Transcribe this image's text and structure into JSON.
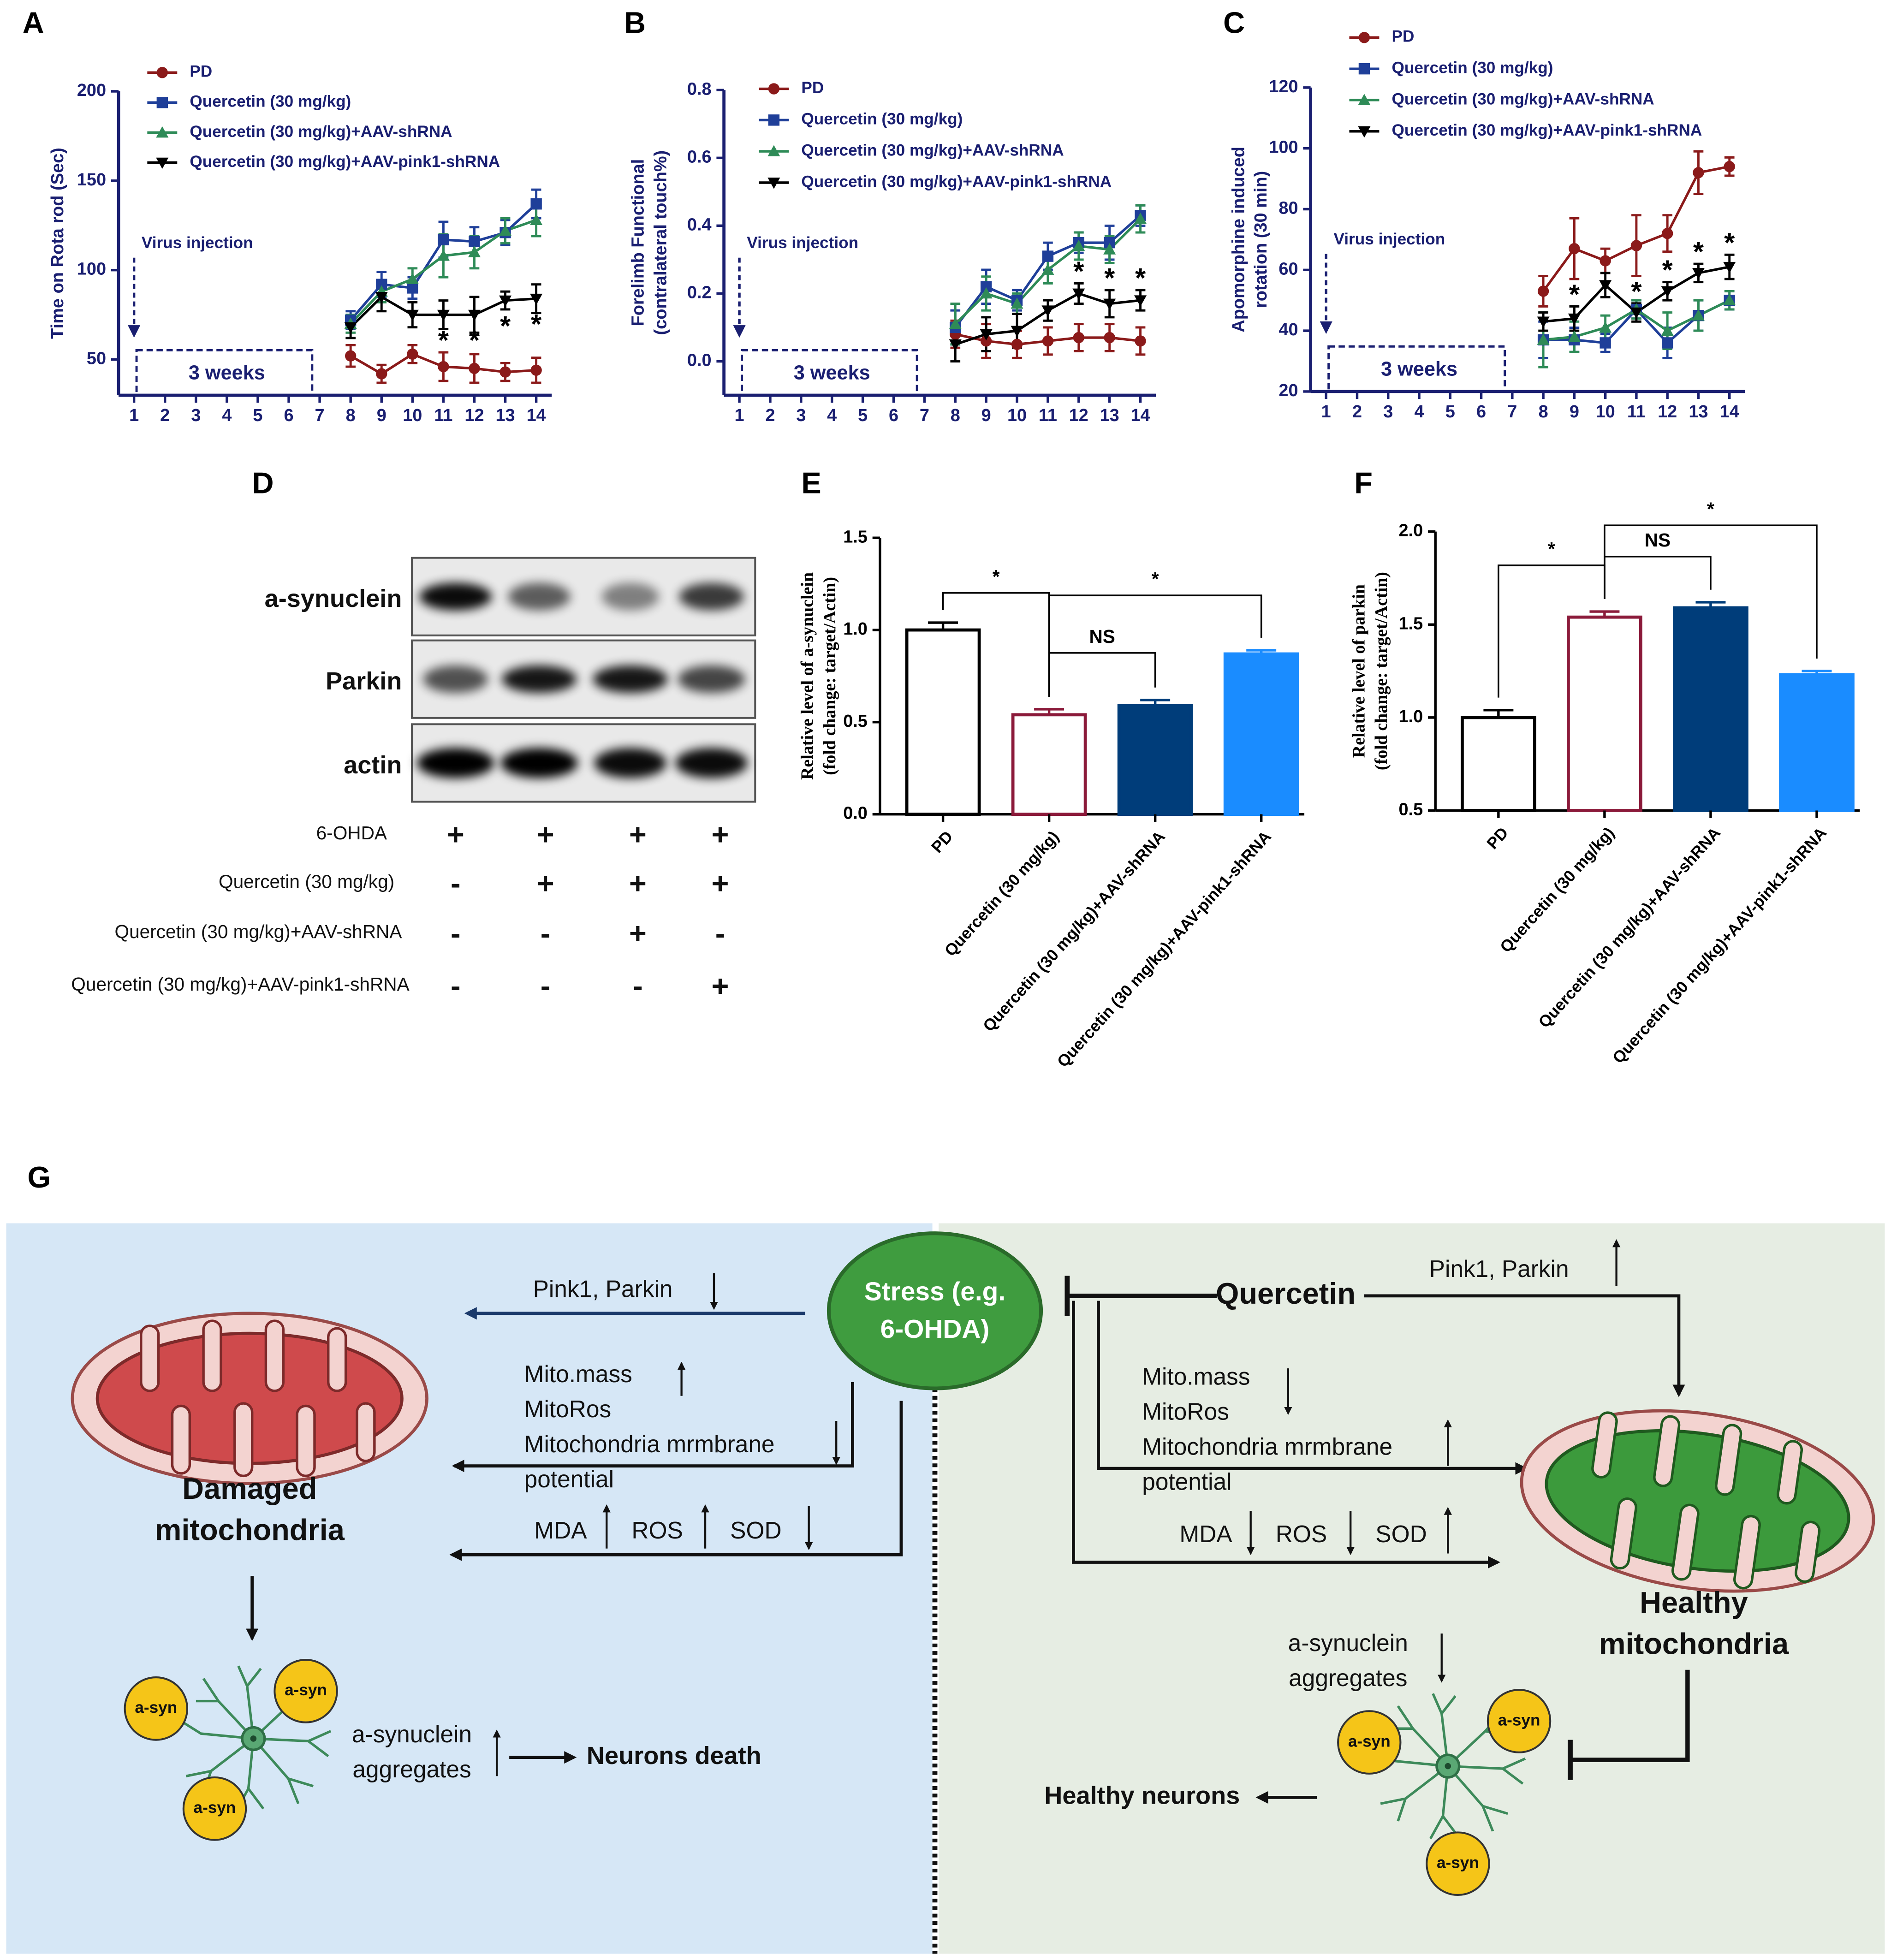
{
  "chart_data": [
    {
      "type": "line",
      "panel": "A",
      "ylabel": [
        "Time on Rota rod (Sec)"
      ],
      "x": [
        8,
        9,
        10,
        11,
        12,
        13,
        14
      ],
      "xlim": [
        0.5,
        14.5
      ],
      "xticks": [
        1,
        2,
        3,
        4,
        5,
        6,
        7,
        8,
        9,
        10,
        11,
        12,
        13,
        14
      ],
      "ylim": [
        30,
        200
      ],
      "yticks": [
        50,
        100,
        150,
        200
      ],
      "legend": "upper left",
      "series": [
        {
          "name": "PD",
          "color": "#8b1a1a",
          "marker": "circle",
          "values": [
            52,
            42,
            53,
            46,
            45,
            43,
            44
          ],
          "errors": [
            6,
            5,
            5,
            8,
            8,
            5,
            7
          ]
        },
        {
          "name": "Quercetin (30 mg/kg)",
          "color": "#1f3f99",
          "marker": "square",
          "values": [
            72,
            92,
            90,
            117,
            116,
            121,
            137
          ],
          "errors": [
            5,
            7,
            6,
            10,
            8,
            7,
            8
          ]
        },
        {
          "name": "Quercetin (30 mg/kg)+AAV-shRNA",
          "color": "#2e8b57",
          "marker": "triangle-up",
          "values": [
            70,
            88,
            95,
            108,
            110,
            122,
            128
          ],
          "errors": [
            5,
            6,
            6,
            12,
            9,
            7,
            9
          ]
        },
        {
          "name": "Quercetin (30 mg/kg)+AAV-pink1-shRNA",
          "color": "#000000",
          "marker": "triangle-down",
          "values": [
            68,
            85,
            75,
            75,
            75,
            83,
            84
          ],
          "errors": [
            6,
            8,
            7,
            8,
            10,
            5,
            8
          ]
        }
      ],
      "annotations": {
        "arrow": "Virus injection",
        "span": "3 weeks"
      },
      "significance": {
        "x": [
          11,
          12,
          13,
          14
        ],
        "labels": [
          "*",
          "*",
          "*",
          "*"
        ]
      }
    },
    {
      "type": "line",
      "panel": "B",
      "ylabel": [
        "Forelimb Functional",
        "(contralateral touch%)"
      ],
      "x": [
        8,
        9,
        10,
        11,
        12,
        13,
        14
      ],
      "xlim": [
        0.5,
        14.5
      ],
      "xticks": [
        1,
        2,
        3,
        4,
        5,
        6,
        7,
        8,
        9,
        10,
        11,
        12,
        13,
        14
      ],
      "ylim": [
        -0.1,
        0.8
      ],
      "yticks": [
        {
          "value": 0,
          "label": "0.0"
        },
        0.2,
        0.4,
        0.6,
        0.8
      ],
      "legend": "upper left",
      "series": [
        {
          "name": "PD",
          "color": "#8b1a1a",
          "marker": "circle",
          "values": [
            0.08,
            0.06,
            0.05,
            0.06,
            0.07,
            0.07,
            0.06
          ],
          "errors": [
            0.04,
            0.05,
            0.04,
            0.04,
            0.04,
            0.04,
            0.04
          ]
        },
        {
          "name": "Quercetin (30 mg/kg)",
          "color": "#1f3f99",
          "marker": "square",
          "values": [
            0.1,
            0.22,
            0.18,
            0.31,
            0.35,
            0.35,
            0.43
          ],
          "errors": [
            0.05,
            0.05,
            0.03,
            0.04,
            0.03,
            0.05,
            0.03
          ]
        },
        {
          "name": "Quercetin (30 mg/kg)+AAV-shRNA",
          "color": "#2e8b57",
          "marker": "triangle-up",
          "values": [
            0.11,
            0.2,
            0.17,
            0.27,
            0.34,
            0.33,
            0.42
          ],
          "errors": [
            0.06,
            0.05,
            0.03,
            0.04,
            0.04,
            0.04,
            0.04
          ]
        },
        {
          "name": "Quercetin (30 mg/kg)+AAV-pink1-shRNA",
          "color": "#000000",
          "marker": "triangle-down",
          "values": [
            0.05,
            0.08,
            0.09,
            0.15,
            0.2,
            0.17,
            0.18
          ],
          "errors": [
            0.05,
            0.05,
            0.05,
            0.03,
            0.03,
            0.04,
            0.03
          ]
        }
      ],
      "annotations": {
        "arrow": "Virus injection",
        "span": "3 weeks"
      },
      "significance": {
        "x": [
          12,
          13,
          14
        ],
        "labels": [
          "*",
          "*",
          "*"
        ]
      }
    },
    {
      "type": "line",
      "panel": "C",
      "ylabel": [
        "Apomorphine induced",
        "rotation (30 min)"
      ],
      "x": [
        8,
        9,
        10,
        11,
        12,
        13,
        14
      ],
      "xlim": [
        0.5,
        14.5
      ],
      "xticks": [
        1,
        2,
        3,
        4,
        5,
        6,
        7,
        8,
        9,
        10,
        11,
        12,
        13,
        14
      ],
      "ylim": [
        20,
        120
      ],
      "yticks": [
        20,
        40,
        60,
        80,
        100,
        120
      ],
      "legend": "upper left",
      "series": [
        {
          "name": "PD",
          "color": "#8b1a1a",
          "marker": "circle",
          "values": [
            53,
            67,
            63,
            68,
            72,
            92,
            94
          ],
          "errors": [
            5,
            10,
            4,
            10,
            6,
            7,
            3
          ]
        },
        {
          "name": "Quercetin (30 mg/kg)",
          "color": "#1f3f99",
          "marker": "square",
          "values": [
            37,
            37,
            36,
            47,
            36,
            45,
            50
          ],
          "errors": [
            6,
            4,
            3,
            3,
            5,
            5,
            3
          ]
        },
        {
          "name": "Quercetin (30 mg/kg)+AAV-shRNA",
          "color": "#2e8b57",
          "marker": "triangle-up",
          "values": [
            37,
            38,
            41,
            47,
            40,
            45,
            50
          ],
          "errors": [
            9,
            5,
            4,
            3,
            6,
            5,
            3
          ]
        },
        {
          "name": "Quercetin (30 mg/kg)+AAV-pink1-shRNA",
          "color": "#000000",
          "marker": "triangle-down",
          "values": [
            43,
            44,
            55,
            46,
            53,
            59,
            61
          ],
          "errors": [
            3,
            4,
            4,
            3,
            3,
            3,
            4
          ]
        }
      ],
      "annotations": {
        "arrow": "Virus injection",
        "span": "3 weeks"
      },
      "significance": {
        "x": [
          9,
          11,
          12,
          13,
          14
        ],
        "labels": [
          "*",
          "*",
          "*",
          "*",
          "*"
        ]
      }
    },
    {
      "type": "bar",
      "panel": "E",
      "ylabel": [
        "Relative level of a-synuclein",
        "(fold change: target/Actin)"
      ],
      "categories": [
        "PD",
        "Quercetin (30 mg/kg)",
        "Quercetin (30 mg/kg)+AAV-shRNA",
        "Quercetin (30 mg/kg)+AAV-pink1-shRNA"
      ],
      "values": [
        1.0,
        0.54,
        0.59,
        0.87
      ],
      "errors": [
        0.04,
        0.03,
        0.03,
        0.02
      ],
      "colors": [
        "#ffffff",
        "#ffffff",
        "#003d7a",
        "#1a8cff"
      ],
      "edgecolors": [
        "#000000",
        "#8b1a3a",
        "#003d7a",
        "#1a8cff"
      ],
      "ylim": [
        0,
        1.5
      ],
      "yticks": [
        {
          "value": 0,
          "label": "0.0"
        },
        0.5,
        {
          "value": 1,
          "label": "1.0"
        },
        1.5
      ],
      "comparisons": [
        "*",
        "NS",
        "*"
      ]
    },
    {
      "type": "bar",
      "panel": "F",
      "ylabel": [
        "Relative level of parkin",
        "(fold change: target/Actin)"
      ],
      "categories": [
        "PD",
        "Quercetin (30 mg/kg)",
        "Quercetin (30 mg/kg)+AAV-shRNA",
        "Quercetin (30 mg/kg)+AAV-pink1-shRNA"
      ],
      "values": [
        1.0,
        1.54,
        1.59,
        1.23
      ],
      "errors": [
        0.04,
        0.03,
        0.03,
        0.02
      ],
      "colors": [
        "#ffffff",
        "#ffffff",
        "#003d7a",
        "#1a8cff"
      ],
      "edgecolors": [
        "#000000",
        "#8b1a3a",
        "#003d7a",
        "#1a8cff"
      ],
      "ylim": [
        0.5,
        2.0
      ],
      "yticks": [
        0.5,
        {
          "value": 1,
          "label": "1.0"
        },
        1.5,
        {
          "value": 2,
          "label": "2.0"
        }
      ],
      "comparisons": [
        "*",
        "NS",
        "*"
      ]
    }
  ],
  "blot": {
    "panel": "D",
    "bands": [
      "a-synuclein",
      "Parkin",
      "actin"
    ],
    "treatments": [
      {
        "label": "6-OHDA",
        "signs": [
          "+",
          "+",
          "+",
          "+"
        ]
      },
      {
        "label": "Quercetin (30 mg/kg)",
        "signs": [
          "-",
          "+",
          "+",
          "+"
        ]
      },
      {
        "label": "Quercetin (30 mg/kg)+AAV-shRNA",
        "signs": [
          "-",
          "-",
          "+",
          "-"
        ]
      },
      {
        "label": "Quercetin (30 mg/kg)+AAV-pink1-shRNA",
        "signs": [
          "-",
          "-",
          "-",
          "+"
        ]
      }
    ]
  },
  "diagram": {
    "label": "G",
    "stress": [
      "Stress (e.g.",
      "6-OHDA)"
    ],
    "quercetin": "Quercetin",
    "left": {
      "pink_parkin": "Pink1, Parkin",
      "mito": [
        "Mito.mass",
        "MitoRos",
        "Mitochondria mrmbrane",
        "potential"
      ],
      "markers": [
        "MDA",
        "ROS",
        "SOD"
      ],
      "mitochondria": [
        "Damaged",
        "mitochondria"
      ],
      "asyn": [
        "a-syn",
        "a-syn",
        "a-syn"
      ],
      "aggregates": [
        "a-synuclein",
        "aggregates"
      ],
      "outcome": "Neurons death"
    },
    "right": {
      "pink_parkin": "Pink1, Parkin",
      "mito": [
        "Mito.mass",
        "MitoRos",
        "Mitochondria mrmbrane",
        "potential"
      ],
      "markers": [
        "MDA",
        "ROS",
        "SOD"
      ],
      "mitochondria": [
        "Healthy",
        "mitochondria"
      ],
      "asyn": [
        "a-syn",
        "a-syn",
        "a-syn"
      ],
      "aggregates": [
        "a-synuclein",
        "aggregates"
      ],
      "outcome": "Healthy neurons"
    }
  }
}
